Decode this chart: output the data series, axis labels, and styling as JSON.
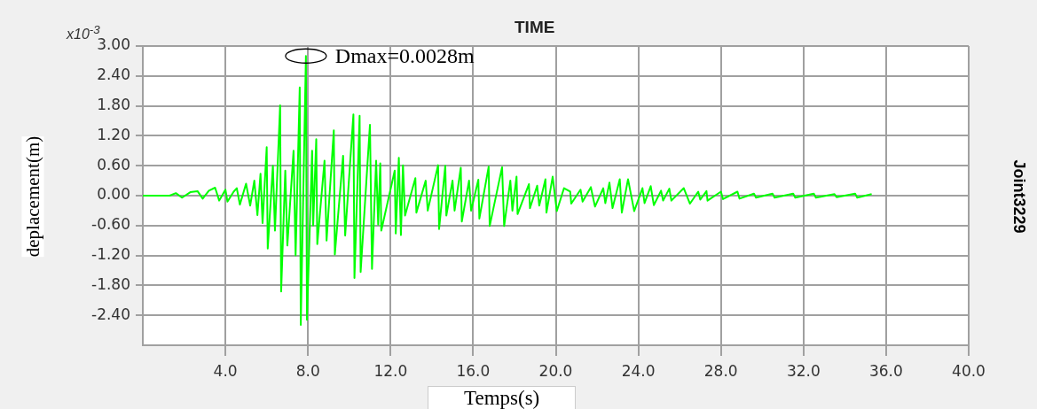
{
  "chart_data": {
    "type": "line",
    "title": "TIME",
    "xlabel": "Temps(s)",
    "ylabel": "deplacement(m)",
    "annotations": [
      {
        "text": "Dmax=0.0028m",
        "x": 7.9,
        "y": 2.8
      },
      "x10$^{-3}$",
      "Joint3229"
    ],
    "x": [
      0,
      1.3,
      1.6,
      1.9,
      2.3,
      2.65,
      2.9,
      3.2,
      3.5,
      3.7,
      4.0,
      4.1,
      4.4,
      4.55,
      4.7,
      5.0,
      5.2,
      5.4,
      5.55,
      5.7,
      5.8,
      6.0,
      6.05,
      6.3,
      6.4,
      6.65,
      6.7,
      6.9,
      7.0,
      7.3,
      7.4,
      7.6,
      7.65,
      7.9,
      7.95,
      8.2,
      8.25,
      8.4,
      8.45,
      8.8,
      8.9,
      9.25,
      9.3,
      9.7,
      9.8,
      10.2,
      10.25,
      10.5,
      10.55,
      11.0,
      11.1,
      11.3,
      11.4,
      11.5,
      11.55,
      12.2,
      12.25,
      12.4,
      12.5,
      12.6,
      12.7,
      13.2,
      13.25,
      13.7,
      13.8,
      14.3,
      14.35,
      14.65,
      14.7,
      15.0,
      15.1,
      15.4,
      15.45,
      15.8,
      15.9,
      16.25,
      16.3,
      16.75,
      16.8,
      17.4,
      17.5,
      17.8,
      17.9,
      18.1,
      18.15,
      18.7,
      18.75,
      19.1,
      19.2,
      19.5,
      19.55,
      19.85,
      20.05,
      20.4,
      20.7,
      20.75,
      21.2,
      21.3,
      21.7,
      21.9,
      22.3,
      22.4,
      22.6,
      22.75,
      23.1,
      23.2,
      23.5,
      23.8,
      24.2,
      24.3,
      24.6,
      24.75,
      25.1,
      25.2,
      25.5,
      25.6,
      26.2,
      26.5,
      26.9,
      27.0,
      27.3,
      27.35,
      28.0,
      28.1,
      28.8,
      28.9,
      29.6,
      29.7,
      30.5,
      30.6,
      31.5,
      31.6,
      32.5,
      32.6,
      33.5,
      33.6,
      34.5,
      34.6,
      35.3
    ],
    "series": [
      {
        "color": "#00ff00",
        "values": [
          0,
          0,
          0.05,
          -0.04,
          0.07,
          0.09,
          -0.06,
          0.1,
          0.16,
          -0.1,
          0.12,
          -0.12,
          0.08,
          0.15,
          -0.18,
          0.24,
          -0.2,
          0.3,
          -0.39,
          0.44,
          -0.55,
          0.97,
          -1.06,
          0.6,
          -0.7,
          1.81,
          -1.92,
          0.5,
          -1.0,
          0.9,
          -1.2,
          2.17,
          -2.59,
          2.8,
          -2.49,
          0.9,
          -0.6,
          1.13,
          -0.97,
          0.7,
          -0.9,
          1.31,
          -1.18,
          0.8,
          -0.8,
          1.63,
          -1.65,
          1.6,
          -1.53,
          1.42,
          -1.47,
          0.7,
          -0.58,
          0.65,
          -0.7,
          0.5,
          -0.76,
          0.76,
          -0.79,
          0.61,
          -0.4,
          0.35,
          -0.34,
          0.3,
          -0.3,
          0.61,
          -0.67,
          0.6,
          -0.4,
          0.3,
          -0.3,
          0.56,
          -0.52,
          0.3,
          -0.3,
          0.32,
          -0.46,
          0.58,
          -0.61,
          0.57,
          -0.61,
          0.3,
          -0.3,
          0.38,
          -0.37,
          0.23,
          -0.25,
          0.2,
          -0.2,
          0.33,
          -0.34,
          0.38,
          -0.31,
          0.15,
          0.08,
          -0.16,
          0.12,
          -0.12,
          0.17,
          -0.22,
          0.15,
          -0.15,
          0.26,
          -0.25,
          0.33,
          -0.34,
          0.33,
          -0.31,
          0.15,
          -0.15,
          0.19,
          -0.19,
          0.1,
          -0.1,
          0.14,
          -0.1,
          0.15,
          -0.16,
          0.08,
          -0.08,
          0.09,
          -0.1,
          0.08,
          -0.07,
          0.08,
          -0.06,
          0.04,
          -0.04,
          0.04,
          -0.04,
          0.04,
          -0.04,
          0.04,
          -0.04,
          0.03,
          -0.03,
          0.04,
          -0.04,
          0.03
        ]
      }
    ],
    "xlim": [
      0,
      40
    ],
    "xticks": [
      {
        "value": 4,
        "label": "4.0"
      },
      {
        "value": 8,
        "label": "8.0"
      },
      {
        "value": 12,
        "label": "12.0"
      },
      {
        "value": 16,
        "label": "16.0"
      },
      {
        "value": 20,
        "label": "20.0"
      },
      {
        "value": 24,
        "label": "24.0"
      },
      {
        "value": 28,
        "label": "28.0"
      },
      {
        "value": 32,
        "label": "32.0"
      },
      {
        "value": 36,
        "label": "36.0"
      },
      {
        "value": 40,
        "label": "40.0"
      }
    ],
    "ylim": [
      -3,
      3
    ],
    "yticks": [
      {
        "value": 3,
        "label": "3.00"
      },
      {
        "value": 2.4,
        "label": "2.40"
      },
      {
        "value": 1.8,
        "label": "1.80"
      },
      {
        "value": 1.2,
        "label": "1.20"
      },
      {
        "value": 0.6,
        "label": "0.60"
      },
      {
        "value": 0,
        "label": "0.00"
      },
      {
        "value": -0.6,
        "label": "-0.60"
      },
      {
        "value": -1.2,
        "label": "-1.20"
      },
      {
        "value": -1.8,
        "label": "-1.80"
      },
      {
        "value": -2.4,
        "label": "-2.40"
      }
    ],
    "grid": true,
    "legend": false,
    "marker": "none",
    "line_style": "solid"
  }
}
